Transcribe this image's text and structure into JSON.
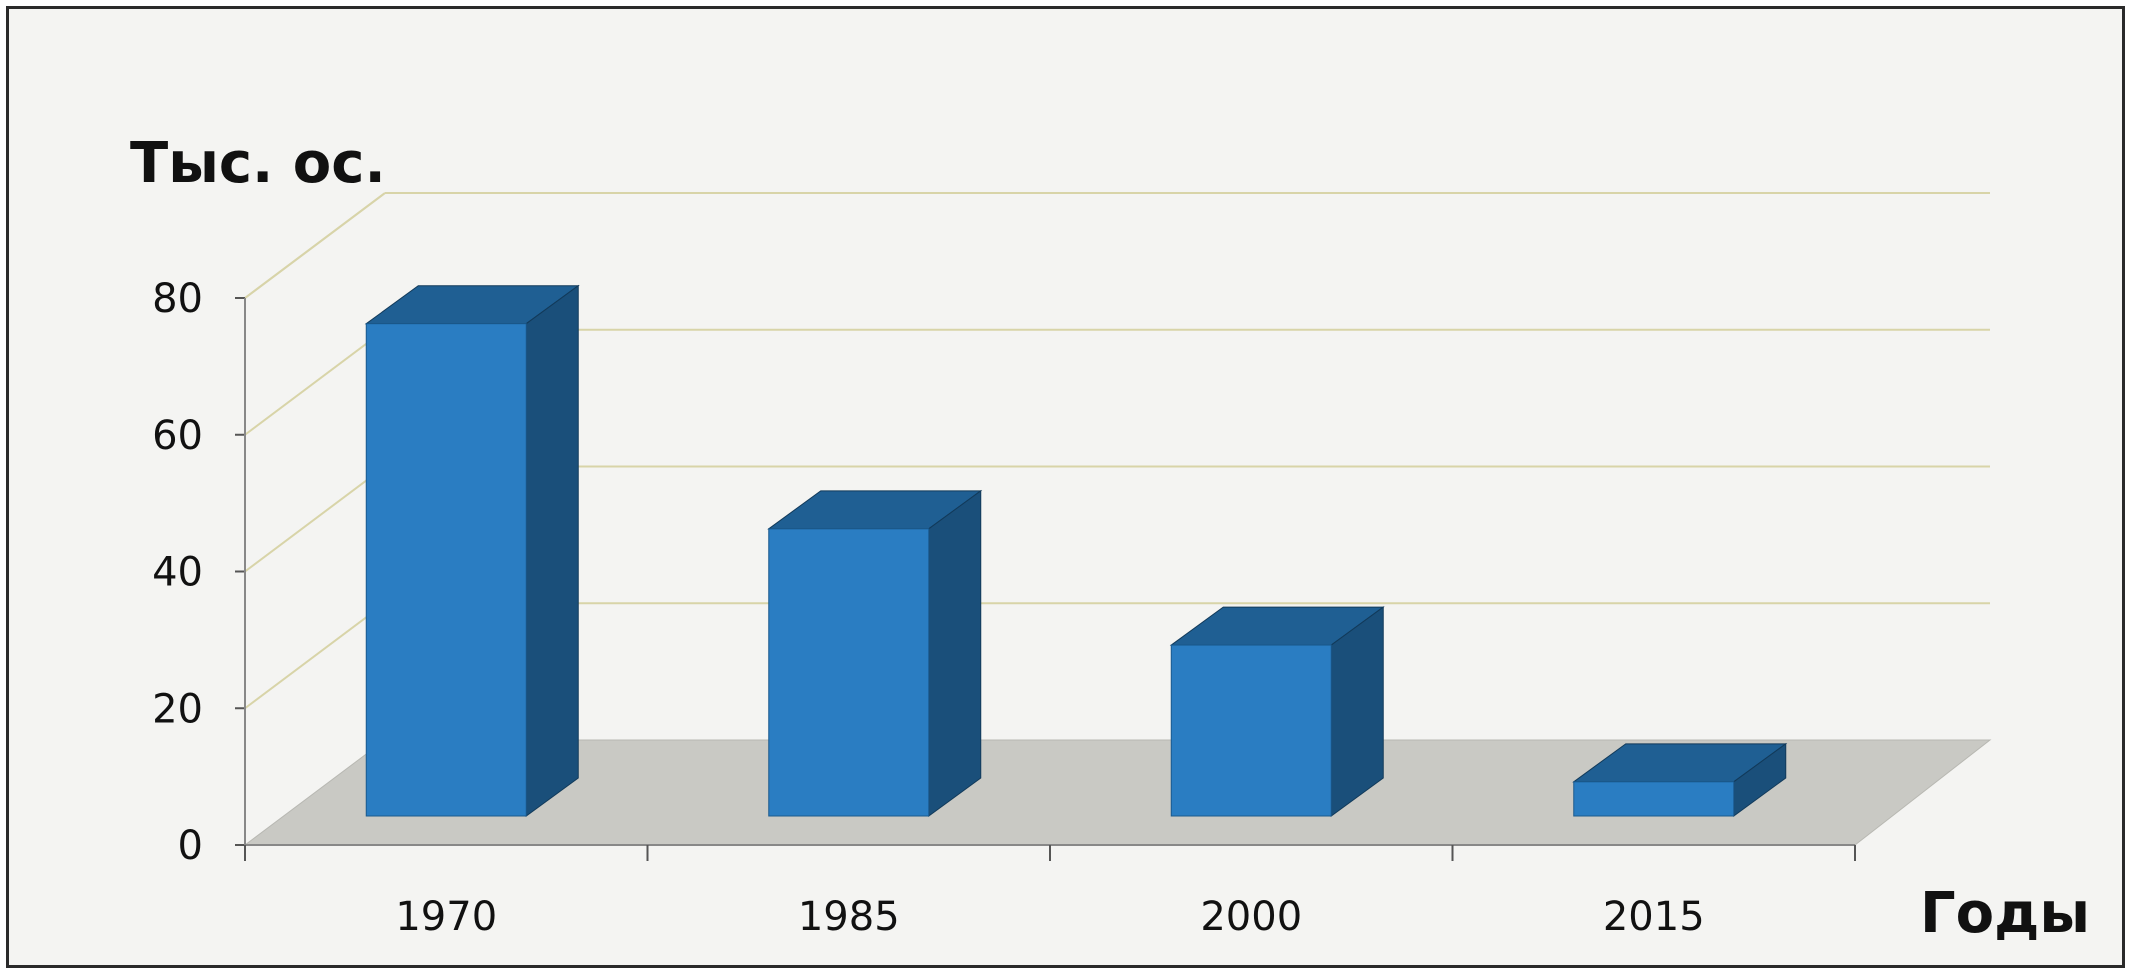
{
  "chart_data": {
    "type": "bar",
    "style": "3d-column",
    "ylabel": "Тыс. ос.",
    "xlabel": "Годы",
    "categories": [
      "1970",
      "1985",
      "2000",
      "2015"
    ],
    "series": [
      {
        "values": [
          72,
          42,
          25,
          5
        ]
      }
    ],
    "ylim": [
      0,
      80
    ],
    "yticks": [
      "0",
      "20",
      "40",
      "60",
      "80"
    ],
    "grid": true,
    "legend": "none",
    "colors": {
      "bar_front": "#2a7dc2",
      "bar_top": "#1f5f93",
      "bar_side": "#1a4f7a",
      "floor": "#c9c9c4",
      "gridline": "#d8d4a8",
      "background": "#f4f4f2"
    }
  }
}
